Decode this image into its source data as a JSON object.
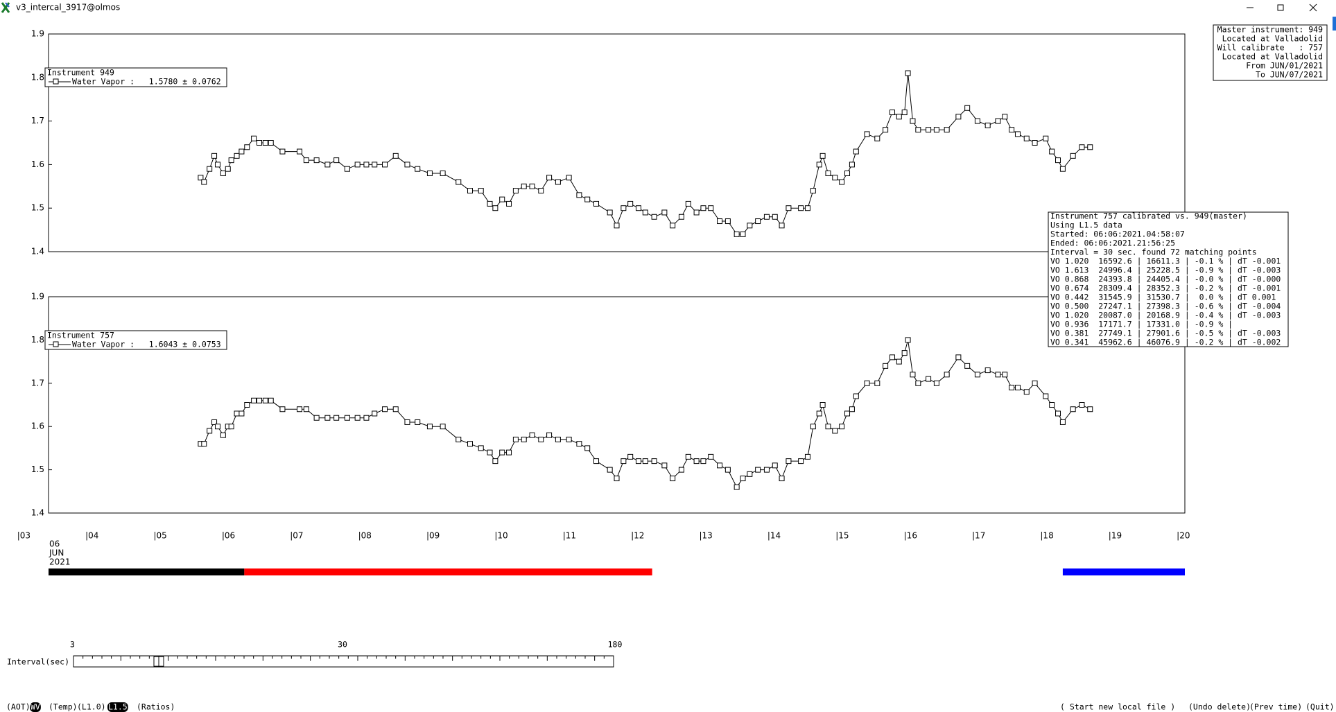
{
  "window": {
    "title": "v3_intercal_3917@olmos"
  },
  "chart_data": [
    {
      "type": "line",
      "color": "#000000",
      "legend": {
        "title": "Instrument 949",
        "label": "Water Vapor :   1.5780 ± 0.0762"
      },
      "xlim": [
        3.44,
        20.1
      ],
      "ylim": [
        1.4,
        1.9
      ],
      "yticks": [
        1.4,
        1.5,
        1.6,
        1.7,
        1.8,
        1.9
      ],
      "x": [
        5.67,
        5.72,
        5.8,
        5.87,
        5.92,
        6.0,
        6.07,
        6.12,
        6.2,
        6.27,
        6.35,
        6.45,
        6.53,
        6.62,
        6.7,
        6.87,
        7.12,
        7.22,
        7.37,
        7.53,
        7.66,
        7.82,
        7.97,
        8.1,
        8.22,
        8.37,
        8.53,
        8.7,
        8.85,
        9.03,
        9.22,
        9.45,
        9.62,
        9.78,
        9.91,
        9.99,
        10.09,
        10.19,
        10.29,
        10.41,
        10.53,
        10.66,
        10.78,
        10.91,
        11.07,
        11.22,
        11.34,
        11.47,
        11.67,
        11.77,
        11.87,
        11.97,
        12.09,
        12.19,
        12.32,
        12.47,
        12.59,
        12.72,
        12.82,
        12.94,
        13.04,
        13.15,
        13.28,
        13.4,
        13.53,
        13.62,
        13.72,
        13.84,
        13.97,
        14.09,
        14.19,
        14.29,
        14.47,
        14.57,
        14.65,
        14.74,
        14.79,
        14.87,
        14.97,
        15.07,
        15.15,
        15.22,
        15.28,
        15.44,
        15.59,
        15.71,
        15.81,
        15.91,
        15.99,
        16.04,
        16.11,
        16.19,
        16.34,
        16.46,
        16.61,
        16.78,
        16.91,
        17.06,
        17.21,
        17.36,
        17.46,
        17.56,
        17.65,
        17.78,
        17.9,
        18.06,
        18.15,
        18.24,
        18.31,
        18.46,
        18.59,
        18.71
      ],
      "values": [
        1.57,
        1.56,
        1.59,
        1.62,
        1.6,
        1.58,
        1.59,
        1.61,
        1.62,
        1.63,
        1.64,
        1.66,
        1.65,
        1.65,
        1.65,
        1.63,
        1.63,
        1.61,
        1.61,
        1.6,
        1.61,
        1.59,
        1.6,
        1.6,
        1.6,
        1.6,
        1.62,
        1.6,
        1.59,
        1.58,
        1.58,
        1.56,
        1.54,
        1.54,
        1.51,
        1.5,
        1.52,
        1.51,
        1.54,
        1.55,
        1.55,
        1.54,
        1.57,
        1.56,
        1.57,
        1.53,
        1.52,
        1.51,
        1.49,
        1.46,
        1.5,
        1.51,
        1.5,
        1.49,
        1.48,
        1.49,
        1.46,
        1.48,
        1.51,
        1.49,
        1.5,
        1.5,
        1.47,
        1.47,
        1.44,
        1.44,
        1.46,
        1.47,
        1.48,
        1.48,
        1.46,
        1.5,
        1.5,
        1.5,
        1.54,
        1.6,
        1.62,
        1.58,
        1.57,
        1.56,
        1.58,
        1.6,
        1.63,
        1.67,
        1.66,
        1.68,
        1.72,
        1.71,
        1.72,
        1.81,
        1.7,
        1.68,
        1.68,
        1.68,
        1.68,
        1.71,
        1.73,
        1.7,
        1.69,
        1.7,
        1.71,
        1.68,
        1.67,
        1.66,
        1.65,
        1.66,
        1.63,
        1.61,
        1.59,
        1.62,
        1.64,
        1.64
      ]
    },
    {
      "type": "line",
      "color": "#000000",
      "legend": {
        "title": "Instrument 757",
        "label": "Water Vapor :   1.6043 ± 0.0753"
      },
      "xlim": [
        3.44,
        20.1
      ],
      "ylim": [
        1.4,
        1.9
      ],
      "yticks": [
        1.4,
        1.5,
        1.6,
        1.7,
        1.8,
        1.9
      ],
      "xticks": [
        {
          "value": 3,
          "label": "|03"
        },
        {
          "value": 4,
          "label": "|04"
        },
        {
          "value": 5,
          "label": "|05"
        },
        {
          "value": 6,
          "label": "|06"
        },
        {
          "value": 7,
          "label": "|07"
        },
        {
          "value": 8,
          "label": "|08"
        },
        {
          "value": 9,
          "label": "|09"
        },
        {
          "value": 10,
          "label": "|10"
        },
        {
          "value": 11,
          "label": "|11"
        },
        {
          "value": 12,
          "label": "|12"
        },
        {
          "value": 13,
          "label": "|13"
        },
        {
          "value": 14,
          "label": "|14"
        },
        {
          "value": 15,
          "label": "|15"
        },
        {
          "value": 16,
          "label": "|16"
        },
        {
          "value": 17,
          "label": "|17"
        },
        {
          "value": 18,
          "label": "|18"
        },
        {
          "value": 19,
          "label": "|19"
        },
        {
          "value": 20,
          "label": "|20"
        }
      ],
      "x_date_label": [
        "06",
        "JUN",
        "2021"
      ],
      "x": [
        5.67,
        5.72,
        5.8,
        5.87,
        5.92,
        6.0,
        6.07,
        6.12,
        6.2,
        6.27,
        6.35,
        6.45,
        6.53,
        6.62,
        6.7,
        6.87,
        7.12,
        7.22,
        7.37,
        7.53,
        7.66,
        7.82,
        7.97,
        8.1,
        8.22,
        8.37,
        8.53,
        8.7,
        8.85,
        9.03,
        9.22,
        9.45,
        9.62,
        9.78,
        9.91,
        9.99,
        10.09,
        10.19,
        10.29,
        10.41,
        10.53,
        10.66,
        10.78,
        10.91,
        11.07,
        11.22,
        11.34,
        11.47,
        11.67,
        11.77,
        11.87,
        11.97,
        12.09,
        12.19,
        12.32,
        12.47,
        12.59,
        12.72,
        12.82,
        12.94,
        13.04,
        13.15,
        13.28,
        13.4,
        13.53,
        13.62,
        13.72,
        13.84,
        13.97,
        14.09,
        14.19,
        14.29,
        14.47,
        14.57,
        14.65,
        14.74,
        14.79,
        14.87,
        14.97,
        15.07,
        15.15,
        15.22,
        15.28,
        15.44,
        15.59,
        15.71,
        15.81,
        15.91,
        15.99,
        16.04,
        16.11,
        16.19,
        16.34,
        16.46,
        16.61,
        16.78,
        16.91,
        17.06,
        17.21,
        17.36,
        17.46,
        17.56,
        17.65,
        17.78,
        17.9,
        18.06,
        18.15,
        18.24,
        18.31,
        18.46,
        18.59,
        18.71
      ],
      "values": [
        1.56,
        1.56,
        1.59,
        1.61,
        1.6,
        1.58,
        1.6,
        1.6,
        1.63,
        1.63,
        1.65,
        1.66,
        1.66,
        1.66,
        1.66,
        1.64,
        1.64,
        1.64,
        1.62,
        1.62,
        1.62,
        1.62,
        1.62,
        1.62,
        1.63,
        1.64,
        1.64,
        1.61,
        1.61,
        1.6,
        1.6,
        1.57,
        1.56,
        1.55,
        1.54,
        1.52,
        1.54,
        1.54,
        1.57,
        1.57,
        1.58,
        1.57,
        1.58,
        1.57,
        1.57,
        1.56,
        1.55,
        1.52,
        1.5,
        1.48,
        1.52,
        1.53,
        1.52,
        1.52,
        1.52,
        1.51,
        1.48,
        1.5,
        1.53,
        1.52,
        1.52,
        1.53,
        1.51,
        1.5,
        1.46,
        1.48,
        1.49,
        1.5,
        1.5,
        1.51,
        1.48,
        1.52,
        1.52,
        1.53,
        1.6,
        1.63,
        1.65,
        1.6,
        1.59,
        1.6,
        1.63,
        1.64,
        1.67,
        1.7,
        1.7,
        1.74,
        1.76,
        1.75,
        1.77,
        1.8,
        1.72,
        1.7,
        1.71,
        1.7,
        1.72,
        1.76,
        1.74,
        1.72,
        1.73,
        1.72,
        1.72,
        1.69,
        1.69,
        1.68,
        1.7,
        1.67,
        1.65,
        1.63,
        1.61,
        1.64,
        1.65,
        1.64
      ]
    }
  ],
  "timeline": [
    {
      "color": "#000000",
      "start": 3.44,
      "end": 6.31
    },
    {
      "color": "#ff0000",
      "start": 6.31,
      "end": 12.29
    },
    {
      "color": "#0000ff",
      "start": 18.31,
      "end": 20.1
    }
  ],
  "info": {
    "lines": [
      "Master instrument: 949",
      "Located at Valladolid",
      "Will calibrate   : 757",
      "Located at Valladolid",
      "From JUN/01/2021",
      "To JUN/07/2021"
    ]
  },
  "calibration": {
    "lines": [
      "Instrument 757 calibrated vs. 949(master)",
      "Using L1.5 data",
      "Started: 06:06:2021.04:58:07",
      "Ended: 06:06:2021.21:56:25",
      "Interval = 30 sec. found 72 matching points",
      "VO 1.020  16592.6 | 16611.3 | -0.1 % | dT -0.001",
      "VO 1.613  24996.4 | 25228.5 | -0.9 % | dT -0.003",
      "VO 0.868  24393.8 | 24405.4 | -0.0 % | dT -0.000",
      "VO 0.674  28309.4 | 28352.3 | -0.2 % | dT -0.001",
      "VO 0.442  31545.9 | 31530.7 |  0.0 % | dT 0.001",
      "VO 0.500  27247.1 | 27398.3 | -0.6 % | dT -0.004",
      "VO 1.020  20087.0 | 20168.9 | -0.4 % | dT -0.003",
      "VO 0.936  17171.7 | 17331.0 | -0.9 % |",
      "VO 0.381  27749.1 | 27901.6 | -0.5 % | dT -0.003",
      "VO 0.341  45962.6 | 46076.9 | -0.2 % | dT -0.002"
    ]
  },
  "interval_slider": {
    "label": "Interval(sec)",
    "ticks": [
      3,
      30,
      180
    ]
  },
  "buttons_left": [
    {
      "label": "(AOT)"
    },
    {
      "label": "WV",
      "selected": true
    },
    {
      "label": "(Temp)"
    },
    {
      "label": "(L1.0)"
    },
    {
      "label": "L1.5",
      "selected": true
    },
    {
      "label": "(Ratios)"
    }
  ],
  "buttons_right": [
    {
      "label": "( Start new local file )"
    },
    {
      "label": "(Undo delete)"
    },
    {
      "label": "(Prev time)"
    },
    {
      "label": "(Quit)"
    }
  ]
}
